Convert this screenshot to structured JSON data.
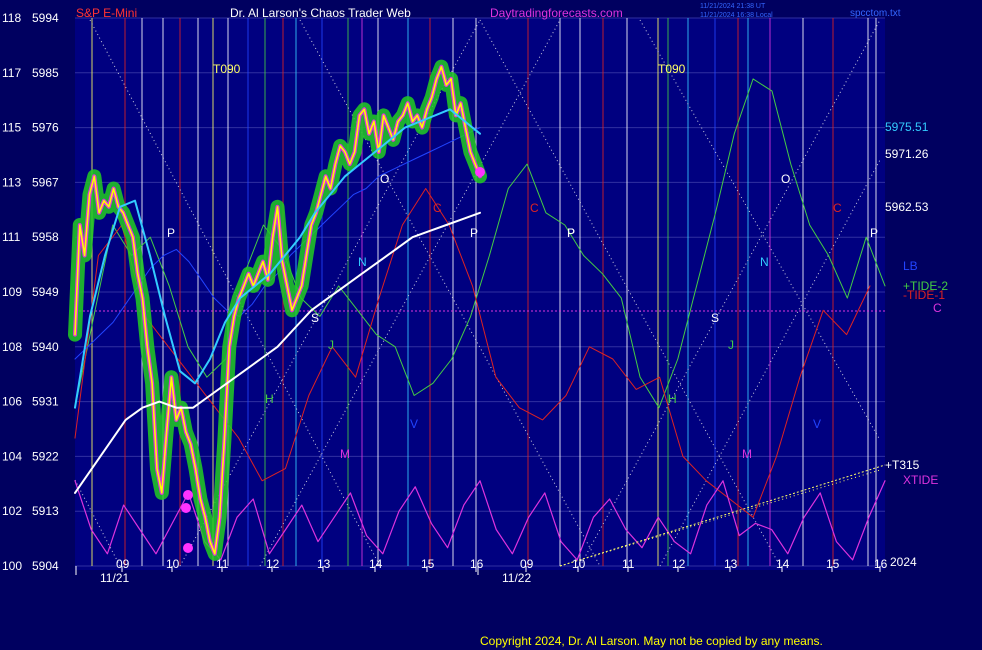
{
  "header": {
    "symbol": "S&P E-Mini",
    "title": "Dr. Al Larson's Chaos Trader Web",
    "site": "Daytradingforecasts.com",
    "timestamp_1": "11/21/2024 21:38 UT",
    "timestamp_2": "11/21/2024 16:38 Local",
    "filename": "spcctom.txt"
  },
  "footer": {
    "copyright": "Copyright 2024, Dr. Al Larson. May not be copied by any means.",
    "year": "2024"
  },
  "colors": {
    "background": "#000060",
    "plot_bg": "#000080",
    "price": "#ffff00",
    "price_glow": "#22cc22",
    "ma_fast": "#33ccff",
    "ma_slow": "#ffffff",
    "tide_plus": "#44cc44",
    "tide_minus": "#dd2222",
    "xtide": "#dd33dd",
    "lb": "#2244ff",
    "t315": "#ffff66"
  },
  "chart_data": {
    "type": "line",
    "title": "S&P E-Mini",
    "y_axis": {
      "left_ticks": [
        "100",
        "102",
        "104",
        "106",
        "108",
        "109",
        "111",
        "113",
        "115",
        "117",
        "118"
      ],
      "right_ticks": [
        "5904",
        "5913",
        "5922",
        "5931",
        "5940",
        "5949",
        "5958",
        "5967",
        "5976",
        "5985",
        "5994"
      ],
      "range": [
        5904,
        5994
      ]
    },
    "x_axis": {
      "hour_ticks": [
        "09",
        "10",
        "11",
        "12",
        "13",
        "14",
        "15",
        "16",
        "09",
        "10",
        "11",
        "12",
        "13",
        "14",
        "15",
        "16"
      ],
      "date_labels": [
        "11/21",
        "11/22"
      ]
    },
    "right_price_labels": [
      "5975.51",
      "5971.26",
      "5962.53"
    ],
    "series_labels": [
      "LB",
      "+TIDE-2",
      "-TIDE-1",
      "C",
      "+T315",
      "XTIDE"
    ],
    "planet_markers": [
      {
        "text": "T090"
      },
      {
        "text": "T090"
      },
      {
        "text": "P"
      },
      {
        "text": "S"
      },
      {
        "text": "J"
      },
      {
        "text": "H"
      },
      {
        "text": "M"
      },
      {
        "text": "N"
      },
      {
        "text": "V"
      },
      {
        "text": "O"
      },
      {
        "text": "C"
      },
      {
        "text": "P"
      },
      {
        "text": "P"
      },
      {
        "text": "C"
      },
      {
        "text": "P"
      },
      {
        "text": "S"
      },
      {
        "text": "J"
      },
      {
        "text": "H"
      },
      {
        "text": "M"
      },
      {
        "text": "N"
      },
      {
        "text": "V"
      },
      {
        "text": "O"
      },
      {
        "text": "C"
      },
      {
        "text": "P"
      }
    ],
    "series": [
      {
        "name": "price",
        "values": [
          5942,
          5960,
          5955,
          5965,
          5968,
          5962,
          5964,
          5963,
          5966,
          5963,
          5962,
          5960,
          5958,
          5952,
          5948,
          5940,
          5934,
          5920,
          5916,
          5926,
          5935,
          5928,
          5930,
          5926,
          5924,
          5920,
          5915,
          5912,
          5908,
          5906,
          5912,
          5925,
          5940,
          5945,
          5948,
          5950,
          5952,
          5950,
          5952,
          5954,
          5951,
          5958,
          5963,
          5954,
          5950,
          5946,
          5948,
          5950,
          5955,
          5960,
          5962,
          5965,
          5968,
          5966,
          5970,
          5973,
          5972,
          5970,
          5972,
          5978,
          5979,
          5975,
          5977,
          5972,
          5978,
          5976,
          5974,
          5977,
          5978,
          5980,
          5977,
          5978,
          5976,
          5979,
          5981,
          5984,
          5986,
          5983,
          5984,
          5978,
          5980,
          5976,
          5972,
          5970,
          5968
        ],
        "note": "11/21 09:30-16:00"
      },
      {
        "name": "LB",
        "values": [
          5938,
          5940,
          5942,
          5944,
          5947,
          5950,
          5953,
          5955,
          5956,
          5954,
          5951,
          5948,
          5946,
          5945,
          5947,
          5950,
          5952,
          5955,
          5957,
          5959,
          5961,
          5963,
          5965,
          5966,
          5968,
          5969,
          5970,
          5971,
          5972,
          5973,
          5974,
          5975,
          5976
        ]
      },
      {
        "name": "ma_slow",
        "values": [
          5916,
          5920,
          5924,
          5928,
          5930,
          5931,
          5930,
          5930,
          5932,
          5934,
          5936,
          5938,
          5940,
          5943,
          5946,
          5948,
          5950,
          5952,
          5954,
          5956,
          5958,
          5959,
          5960,
          5961,
          5962
        ]
      },
      {
        "name": "XTIDE",
        "values": [
          5918,
          5910,
          5906,
          5914,
          5910,
          5906,
          5911,
          5916,
          5908,
          5905,
          5912,
          5915,
          5906,
          5910,
          5914,
          5908,
          5912,
          5916,
          5909,
          5906,
          5913,
          5917,
          5911,
          5907,
          5914,
          5918,
          5910,
          5906,
          5912,
          5916,
          5908,
          5905,
          5912,
          5915,
          5910,
          5907,
          5912,
          5908,
          5906,
          5914,
          5918,
          5909,
          5911,
          5910,
          5906,
          5912,
          5916,
          5908,
          5905,
          5912,
          5918
        ]
      }
    ]
  }
}
